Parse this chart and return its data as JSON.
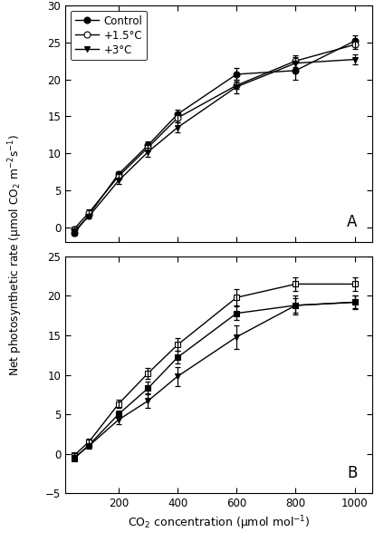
{
  "x": [
    50,
    100,
    200,
    300,
    400,
    600,
    800,
    1000
  ],
  "panel_A": {
    "control": {
      "y": [
        -0.8,
        1.7,
        7.2,
        11.1,
        15.3,
        20.7,
        21.2,
        25.2
      ],
      "yerr": [
        0.3,
        0.3,
        0.4,
        0.5,
        0.6,
        0.8,
        1.3,
        0.7
      ]
    },
    "plus1_5": {
      "y": [
        -0.2,
        2.0,
        6.9,
        10.8,
        14.8,
        19.2,
        22.5,
        24.7
      ],
      "yerr": [
        0.3,
        0.4,
        0.4,
        0.5,
        0.6,
        0.5,
        0.8,
        0.6
      ]
    },
    "plus3": {
      "y": [
        -0.5,
        1.5,
        6.3,
        10.2,
        13.5,
        19.0,
        22.2,
        22.7
      ],
      "yerr": [
        0.3,
        0.3,
        0.4,
        0.6,
        0.7,
        0.9,
        0.8,
        0.7
      ]
    }
  },
  "panel_B": {
    "control": {
      "y": [
        -0.6,
        1.1,
        5.0,
        8.3,
        12.2,
        17.8,
        18.8,
        19.2
      ],
      "yerr": [
        0.3,
        0.3,
        0.5,
        0.8,
        0.8,
        0.9,
        0.9,
        0.8
      ]
    },
    "plus1_5": {
      "y": [
        -0.2,
        1.5,
        6.3,
        10.2,
        13.8,
        19.8,
        21.5,
        21.5
      ],
      "yerr": [
        0.3,
        0.4,
        0.5,
        0.7,
        0.8,
        1.0,
        0.9,
        0.9
      ]
    },
    "plus3": {
      "y": [
        -0.5,
        1.0,
        4.3,
        6.7,
        9.8,
        14.8,
        18.8,
        19.2
      ],
      "yerr": [
        0.3,
        0.3,
        0.6,
        0.9,
        1.2,
        1.5,
        1.2,
        0.9
      ]
    }
  },
  "ylim_A": [
    -2,
    30
  ],
  "yticks_A": [
    0,
    5,
    10,
    15,
    20,
    25,
    30
  ],
  "ylim_B": [
    -5,
    25
  ],
  "yticks_B": [
    -5,
    0,
    5,
    10,
    15,
    20,
    25
  ],
  "xlim": [
    20,
    1060
  ],
  "xticks": [
    200,
    400,
    600,
    800,
    1000
  ],
  "xlabel": "CO$_2$ concentration (μmol mol$^{-1}$)",
  "ylabel": "Net photosynthetic rate (μmol CO$_2$ m$^{-2}$s$^{-1}$)",
  "legend_labels": [
    "Control",
    "+1.5°C",
    "+3°C"
  ],
  "label_A": "A",
  "label_B": "B",
  "capsize": 2.5,
  "linewidth": 1.0,
  "markersize": 5,
  "elinewidth": 0.9
}
